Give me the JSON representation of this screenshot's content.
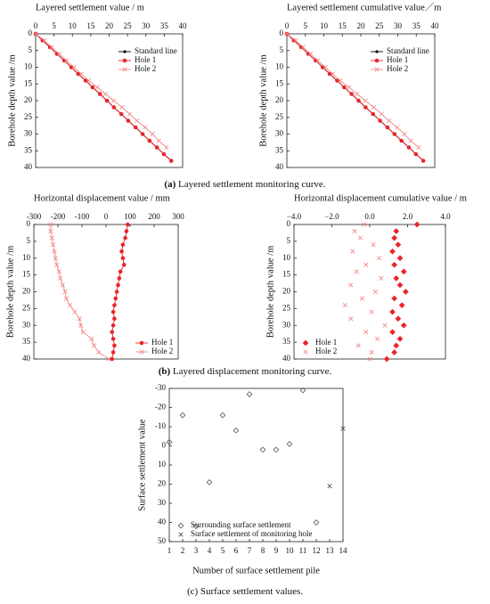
{
  "chart_data": [
    {
      "type": "line",
      "x_label": "Layered settlement value / m",
      "y_label": "Borehole depth value /m",
      "xlim": [
        0,
        40
      ],
      "xticks": [
        0,
        5,
        10,
        15,
        20,
        25,
        30,
        35,
        40
      ],
      "ylim": [
        0,
        40
      ],
      "yticks": [
        0,
        5,
        10,
        15,
        20,
        25,
        30,
        35,
        40
      ],
      "y_inverted": true,
      "xaxis_position": "top",
      "legend": "upper-right",
      "series": [
        {
          "name": "Standard line",
          "color": "#000000",
          "marker": "dot",
          "x": [
            0,
            1.9,
            3.9,
            5.8,
            7.8,
            9.7,
            11.6,
            13.6,
            15.5,
            17.5,
            19.4,
            21.3,
            23.3,
            25.2,
            27.2,
            29.1,
            31,
            33,
            34.9,
            36.9
          ],
          "values": [
            0,
            2,
            4,
            6,
            8,
            10,
            12,
            14,
            16,
            18,
            20,
            22,
            24,
            26,
            28,
            30,
            32,
            34,
            36,
            38
          ]
        },
        {
          "name": "Hole 1",
          "color": "#e8262a",
          "marker": "bigdot",
          "x": [
            0,
            1.9,
            3.9,
            5.8,
            7.8,
            9.7,
            11.6,
            13.6,
            15.5,
            17.5,
            19.4,
            21.3,
            23.3,
            25.2,
            27.2,
            29.1,
            31,
            33,
            34.9,
            36.9
          ],
          "values": [
            0,
            2,
            4,
            6,
            8,
            10,
            12,
            14,
            16,
            18,
            20,
            22,
            24,
            26,
            28,
            30,
            32,
            34,
            36,
            38
          ]
        },
        {
          "name": "Hole 2",
          "color": "#f28c8c",
          "marker": "x",
          "x": [
            0,
            2.4,
            4.4,
            6.4,
            8.4,
            10.4,
            12.4,
            14.4,
            16.8,
            19,
            21.2,
            23.5,
            25.6,
            27.6,
            29.8,
            31.8,
            33.5,
            35.6
          ],
          "values": [
            0,
            2,
            4,
            6,
            8,
            10,
            12,
            14,
            16,
            18,
            20,
            22,
            24,
            26,
            28,
            30,
            32,
            34
          ]
        }
      ]
    },
    {
      "type": "line",
      "x_label": "Layered settlement cumulative value／m",
      "y_label": "Borehole depth value /m",
      "xlim": [
        0,
        40
      ],
      "xticks": [
        0,
        5,
        10,
        15,
        20,
        25,
        30,
        35,
        40
      ],
      "ylim": [
        0,
        40
      ],
      "yticks": [
        0,
        5,
        10,
        15,
        20,
        25,
        30,
        35,
        40
      ],
      "y_inverted": true,
      "xaxis_position": "top",
      "legend": "upper-right",
      "series": [
        {
          "name": "Standard line",
          "color": "#000000",
          "marker": "dot",
          "x": [
            0,
            1.9,
            3.9,
            5.8,
            7.8,
            9.7,
            11.6,
            13.6,
            15.5,
            17.5,
            19.4,
            21.3,
            23.3,
            25.2,
            27.2,
            29.1,
            31,
            33,
            34.9,
            36.9
          ],
          "values": [
            0,
            2,
            4,
            6,
            8,
            10,
            12,
            14,
            16,
            18,
            20,
            22,
            24,
            26,
            28,
            30,
            32,
            34,
            36,
            38
          ]
        },
        {
          "name": "Hole 1",
          "color": "#e8262a",
          "marker": "bigdot",
          "x": [
            0,
            1.9,
            3.9,
            5.8,
            7.8,
            9.7,
            11.6,
            13.6,
            15.5,
            17.5,
            19.4,
            21.3,
            23.3,
            25.2,
            27.2,
            29.1,
            31,
            33,
            34.9,
            36.9
          ],
          "values": [
            0,
            2,
            4,
            6,
            8,
            10,
            12,
            14,
            16,
            18,
            20,
            22,
            24,
            26,
            28,
            30,
            32,
            34,
            36,
            38
          ]
        },
        {
          "name": "Hole 2",
          "color": "#f28c8c",
          "marker": "x",
          "x": [
            0,
            2.4,
            4.4,
            6.4,
            8.4,
            10.4,
            12.4,
            14.4,
            16.8,
            19,
            21.2,
            23.5,
            25.6,
            27.6,
            29.8,
            31.8,
            33.5,
            35.6
          ],
          "values": [
            0,
            2,
            4,
            6,
            8,
            10,
            12,
            14,
            16,
            18,
            20,
            22,
            24,
            26,
            28,
            30,
            32,
            34
          ]
        }
      ]
    },
    {
      "type": "line",
      "x_label": "Horizontal displacement value / mm",
      "y_label": "Borehole depth value /m",
      "xlim": [
        -300,
        300
      ],
      "xticks": [
        -300,
        -200,
        -100,
        0,
        100,
        200,
        300
      ],
      "ylim": [
        0,
        40
      ],
      "yticks": [
        0,
        5,
        10,
        15,
        20,
        25,
        30,
        35,
        40
      ],
      "y_inverted": true,
      "xaxis_position": "top",
      "legend": "lower-right",
      "series": [
        {
          "name": "Hole 1",
          "color": "#e8262a",
          "marker": "bigdot",
          "x": [
            90,
            85,
            80,
            70,
            65,
            70,
            75,
            60,
            55,
            50,
            45,
            40,
            35,
            30,
            35,
            30,
            25,
            30,
            35,
            30,
            25
          ],
          "values": [
            0,
            2,
            4,
            6,
            8,
            10,
            12,
            14,
            16,
            18,
            20,
            22,
            24,
            26,
            28,
            30,
            32,
            34,
            36,
            38,
            40
          ]
        },
        {
          "name": "Hole 2",
          "color": "#f28c8c",
          "marker": "x",
          "x": [
            -230,
            -230,
            -225,
            -220,
            -215,
            -210,
            -205,
            -195,
            -190,
            -180,
            -170,
            -165,
            -150,
            -130,
            -110,
            -105,
            -95,
            -60,
            -50,
            -30,
            10
          ],
          "values": [
            0,
            2,
            4,
            6,
            8,
            10,
            12,
            14,
            16,
            18,
            20,
            22,
            24,
            26,
            28,
            30,
            32,
            34,
            36,
            38,
            40
          ]
        }
      ]
    },
    {
      "type": "scatter",
      "x_label": "Horizontal displacement cumulative value / m",
      "y_label": "Borehole depth value /m",
      "xlim": [
        -4,
        4
      ],
      "xticks": [
        {
          "value": -4,
          "label": "−4.0"
        },
        {
          "value": -2,
          "label": "−2.0"
        },
        {
          "value": 0,
          "label": "0.0"
        },
        {
          "value": 2,
          "label": "2.0"
        },
        {
          "value": 4,
          "label": "4.0"
        }
      ],
      "ylim": [
        0,
        40
      ],
      "yticks": [
        0,
        5,
        10,
        15,
        20,
        25,
        30,
        35,
        40
      ],
      "y_inverted": true,
      "xaxis_position": "top",
      "legend": "lower-left",
      "series": [
        {
          "name": "Hole 1",
          "color": "#e8262a",
          "marker": "diamond",
          "x": [
            2.5,
            1.4,
            1.3,
            1.5,
            1.2,
            1.6,
            1.3,
            1.8,
            1.4,
            1.6,
            1.9,
            1.3,
            1.7,
            1.2,
            1.5,
            1.8,
            1.2,
            1.6,
            1.4,
            1.3,
            0.9
          ],
          "values": [
            0,
            2,
            4,
            6,
            8,
            10,
            12,
            14,
            16,
            18,
            20,
            22,
            24,
            26,
            28,
            30,
            32,
            34,
            36,
            38,
            40
          ]
        },
        {
          "name": "Hole 2",
          "color": "#f28c8c",
          "marker": "x",
          "x": [
            -0.3,
            -0.8,
            -0.5,
            0.2,
            -0.9,
            0.5,
            -0.2,
            -0.7,
            0.6,
            -1.0,
            0.3,
            -0.4,
            -1.3,
            0.1,
            -1.0,
            0.8,
            -0.2,
            0.4,
            -0.6,
            0.1,
            0.0
          ],
          "values": [
            0,
            2,
            4,
            6,
            8,
            10,
            12,
            14,
            16,
            18,
            20,
            22,
            24,
            26,
            28,
            30,
            32,
            34,
            36,
            38,
            40
          ]
        }
      ]
    },
    {
      "type": "scatter",
      "x_label": "Number of surface settlement pile",
      "y_label": "Surface settlement value",
      "xlim": [
        1,
        14
      ],
      "xticks": [
        1,
        2,
        3,
        4,
        5,
        6,
        7,
        8,
        9,
        10,
        11,
        12,
        13,
        14
      ],
      "ylim": [
        -30,
        50
      ],
      "yticks": [
        -30,
        -20,
        -10,
        0,
        10,
        20,
        30,
        40,
        50
      ],
      "y_inverted": true,
      "xaxis_position": "bottom",
      "legend": "lower-left",
      "series": [
        {
          "name": "Surrounding surface settlement",
          "color": "#555555",
          "marker": "diamond-open",
          "x": [
            1,
            2,
            3,
            4,
            5,
            6,
            7,
            8,
            9,
            10,
            11,
            12
          ],
          "values": [
            -2,
            -16,
            42,
            19,
            -16,
            -8,
            -27,
            2,
            2,
            -1,
            -29,
            40
          ]
        },
        {
          "name": "Surface settlement of monitoring hole",
          "color": "#555555",
          "marker": "x",
          "x": [
            13,
            14
          ],
          "values": [
            21,
            -9
          ]
        }
      ]
    }
  ],
  "captions": [
    {
      "label": "(a)",
      "text": " Layered settlement monitoring curve."
    },
    {
      "label": "(b)",
      "text": " Layered displacement monitoring curve."
    },
    {
      "label": "(c)",
      "text": " Surface settlement values."
    }
  ]
}
